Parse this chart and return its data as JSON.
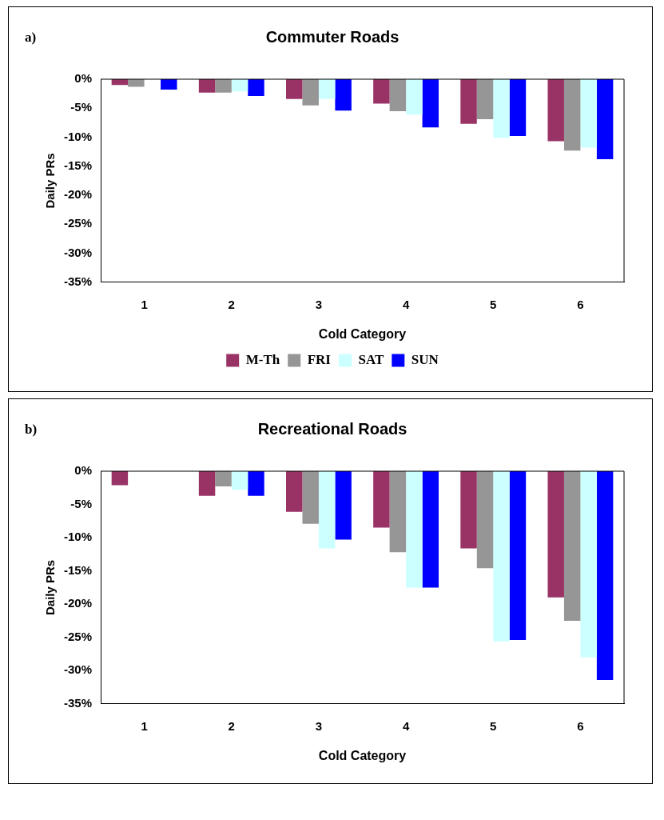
{
  "chart_data": [
    {
      "type": "bar",
      "title": "Commuter Roads",
      "xlabel": "Cold Category",
      "ylabel": "Daily PRs",
      "annotations": [
        "a)"
      ],
      "categories": [
        "1",
        "2",
        "3",
        "4",
        "5",
        "6"
      ],
      "series": [
        {
          "name": "M-Th",
          "color": "#993366",
          "values": [
            -1.0,
            -2.3,
            -3.4,
            -4.2,
            -7.7,
            -10.7
          ]
        },
        {
          "name": "FRI",
          "color": "#969696",
          "values": [
            -1.3,
            -2.3,
            -4.5,
            -5.5,
            -6.9,
            -12.3
          ]
        },
        {
          "name": "SAT",
          "color": "#ccffff",
          "values": [
            null,
            -2.1,
            -3.4,
            -6.1,
            -10.1,
            -11.8
          ]
        },
        {
          "name": "SUN",
          "color": "#0000ff",
          "values": [
            -1.8,
            -2.9,
            -5.4,
            -8.3,
            -9.8,
            -13.8
          ]
        }
      ],
      "ylim": [
        -35,
        0
      ],
      "yticks": [
        {
          "value": -35,
          "label": "-35%"
        },
        {
          "value": -30,
          "label": "-30%"
        },
        {
          "value": -25,
          "label": "-25%"
        },
        {
          "value": -20,
          "label": "-20%"
        },
        {
          "value": -15,
          "label": "-15%"
        },
        {
          "value": -10,
          "label": "-10%"
        },
        {
          "value": -5,
          "label": "-5%"
        },
        {
          "value": 0,
          "label": "0%"
        }
      ],
      "grid": false,
      "legend": "bottom"
    },
    {
      "type": "bar",
      "title": "Recreational Roads",
      "xlabel": "Cold Category",
      "ylabel": "Daily PRs",
      "annotations": [
        "b)"
      ],
      "categories": [
        "1",
        "2",
        "3",
        "4",
        "5",
        "6"
      ],
      "series": [
        {
          "color": "#993366",
          "values": [
            -2.1,
            -3.7,
            -6.1,
            -8.5,
            -11.6,
            -19.0
          ]
        },
        {
          "color": "#969696",
          "values": [
            null,
            -2.3,
            -7.9,
            -12.2,
            -14.6,
            -22.5
          ]
        },
        {
          "color": "#ccffff",
          "values": [
            null,
            -2.8,
            -11.6,
            -17.5,
            -25.6,
            -28.0
          ]
        },
        {
          "color": "#0000ff",
          "values": [
            null,
            -3.7,
            -10.3,
            -17.5,
            -25.4,
            -31.4
          ]
        }
      ],
      "ylim": [
        -35,
        0
      ],
      "yticks": [
        {
          "value": -35,
          "label": "-35%"
        },
        {
          "value": -30,
          "label": "-30%"
        },
        {
          "value": -25,
          "label": "-25%"
        },
        {
          "value": -20,
          "label": "-20%"
        },
        {
          "value": -15,
          "label": "-15%"
        },
        {
          "value": -10,
          "label": "-10%"
        },
        {
          "value": -5,
          "label": "-5%"
        },
        {
          "value": 0,
          "label": "0%"
        }
      ],
      "grid": false,
      "legend": false
    }
  ]
}
